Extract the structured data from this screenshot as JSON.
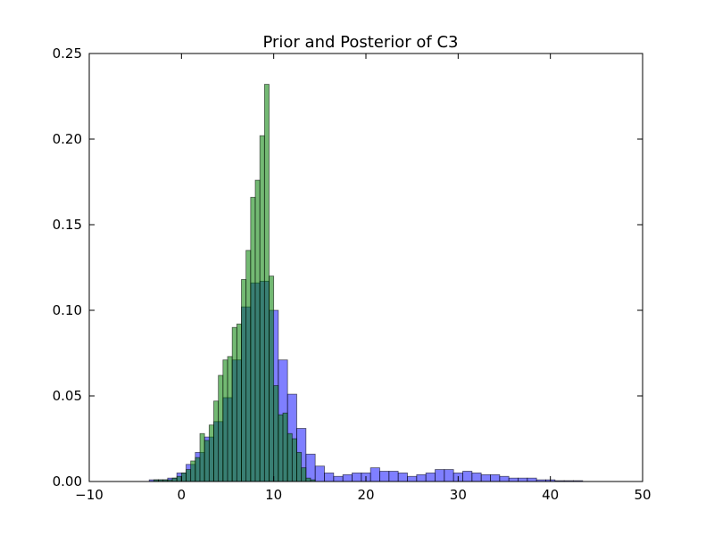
{
  "chart_data": {
    "type": "histogram",
    "title": "Prior and Posterior of C3",
    "xlabel": "",
    "ylabel": "",
    "xlim": [
      -10,
      50
    ],
    "ylim": [
      0,
      0.25
    ],
    "xticks": [
      -10,
      0,
      10,
      20,
      30,
      40,
      50
    ],
    "yticks": [
      0.0,
      0.05,
      0.1,
      0.15,
      0.2,
      0.25
    ],
    "xtick_labels": [
      "−10",
      "0",
      "10",
      "20",
      "30",
      "40",
      "50"
    ],
    "ytick_labels": [
      "0.00",
      "0.05",
      "0.10",
      "0.15",
      "0.20",
      "0.25"
    ],
    "grid": false,
    "legend": "none",
    "series": [
      {
        "color": "#0000ff",
        "opacity": 0.5,
        "bins": [
          [
            -3.5,
            -2.5,
            0.001
          ],
          [
            -2.5,
            -1.5,
            0.001
          ],
          [
            -1.5,
            -0.5,
            0.002
          ],
          [
            -0.5,
            0.5,
            0.005
          ],
          [
            0.5,
            1.5,
            0.01
          ],
          [
            1.5,
            2.5,
            0.017
          ],
          [
            2.5,
            3.5,
            0.026
          ],
          [
            3.5,
            4.5,
            0.035
          ],
          [
            4.5,
            5.5,
            0.049
          ],
          [
            5.5,
            6.5,
            0.071
          ],
          [
            6.5,
            7.5,
            0.102
          ],
          [
            7.5,
            8.5,
            0.116
          ],
          [
            8.5,
            9.5,
            0.117
          ],
          [
            9.5,
            10.5,
            0.1
          ],
          [
            10.5,
            11.5,
            0.071
          ],
          [
            11.5,
            12.5,
            0.051
          ],
          [
            12.5,
            13.5,
            0.031
          ],
          [
            13.5,
            14.5,
            0.016
          ],
          [
            14.5,
            15.5,
            0.009
          ],
          [
            15.5,
            16.5,
            0.005
          ],
          [
            16.5,
            17.5,
            0.003
          ],
          [
            17.5,
            18.5,
            0.004
          ],
          [
            18.5,
            19.5,
            0.005
          ],
          [
            19.5,
            20.5,
            0.005
          ],
          [
            20.5,
            21.5,
            0.008
          ],
          [
            21.5,
            22.5,
            0.006
          ],
          [
            22.5,
            23.5,
            0.006
          ],
          [
            23.5,
            24.5,
            0.005
          ],
          [
            24.5,
            25.5,
            0.003
          ],
          [
            25.5,
            26.5,
            0.004
          ],
          [
            26.5,
            27.5,
            0.005
          ],
          [
            27.5,
            28.5,
            0.007
          ],
          [
            28.5,
            29.5,
            0.007
          ],
          [
            29.5,
            30.5,
            0.005
          ],
          [
            30.5,
            31.5,
            0.006
          ],
          [
            31.5,
            32.5,
            0.005
          ],
          [
            32.5,
            33.5,
            0.004
          ],
          [
            33.5,
            34.5,
            0.004
          ],
          [
            34.5,
            35.5,
            0.003
          ],
          [
            35.5,
            36.5,
            0.002
          ],
          [
            36.5,
            37.5,
            0.002
          ],
          [
            37.5,
            38.5,
            0.002
          ],
          [
            38.5,
            39.5,
            0.001
          ],
          [
            39.5,
            40.5,
            0.001
          ],
          [
            40.5,
            41.5,
            0.0005
          ],
          [
            41.5,
            42.5,
            0.0005
          ],
          [
            42.5,
            43.5,
            0.0005
          ]
        ]
      },
      {
        "color": "#008000",
        "opacity": 0.55,
        "bins": [
          [
            -3.0,
            -2.5,
            0.001
          ],
          [
            -2.5,
            -2.0,
            0.001
          ],
          [
            -2.0,
            -1.5,
            0.001
          ],
          [
            -1.5,
            -1.0,
            0.001
          ],
          [
            -1.0,
            -0.5,
            0.002
          ],
          [
            -0.5,
            0.0,
            0.003
          ],
          [
            0.0,
            0.5,
            0.005
          ],
          [
            0.5,
            1.0,
            0.007
          ],
          [
            1.0,
            1.5,
            0.012
          ],
          [
            1.5,
            2.0,
            0.014
          ],
          [
            2.0,
            2.5,
            0.028
          ],
          [
            2.5,
            3.0,
            0.024
          ],
          [
            3.0,
            3.5,
            0.033
          ],
          [
            3.5,
            4.0,
            0.047
          ],
          [
            4.0,
            4.5,
            0.062
          ],
          [
            4.5,
            5.0,
            0.071
          ],
          [
            5.0,
            5.5,
            0.073
          ],
          [
            5.5,
            6.0,
            0.09
          ],
          [
            6.0,
            6.5,
            0.092
          ],
          [
            6.5,
            7.0,
            0.118
          ],
          [
            7.0,
            7.5,
            0.135
          ],
          [
            7.5,
            8.0,
            0.166
          ],
          [
            8.0,
            8.5,
            0.176
          ],
          [
            8.5,
            9.0,
            0.202
          ],
          [
            9.0,
            9.5,
            0.232
          ],
          [
            9.5,
            10.0,
            0.12
          ],
          [
            10.0,
            10.5,
            0.056
          ],
          [
            10.5,
            11.0,
            0.039
          ],
          [
            11.0,
            11.5,
            0.04
          ],
          [
            11.5,
            12.0,
            0.028
          ],
          [
            12.0,
            12.5,
            0.025
          ],
          [
            12.5,
            13.0,
            0.017
          ],
          [
            13.0,
            13.5,
            0.008
          ],
          [
            13.5,
            14.0,
            0.002
          ],
          [
            14.0,
            14.5,
            0.001
          ]
        ]
      }
    ]
  }
}
